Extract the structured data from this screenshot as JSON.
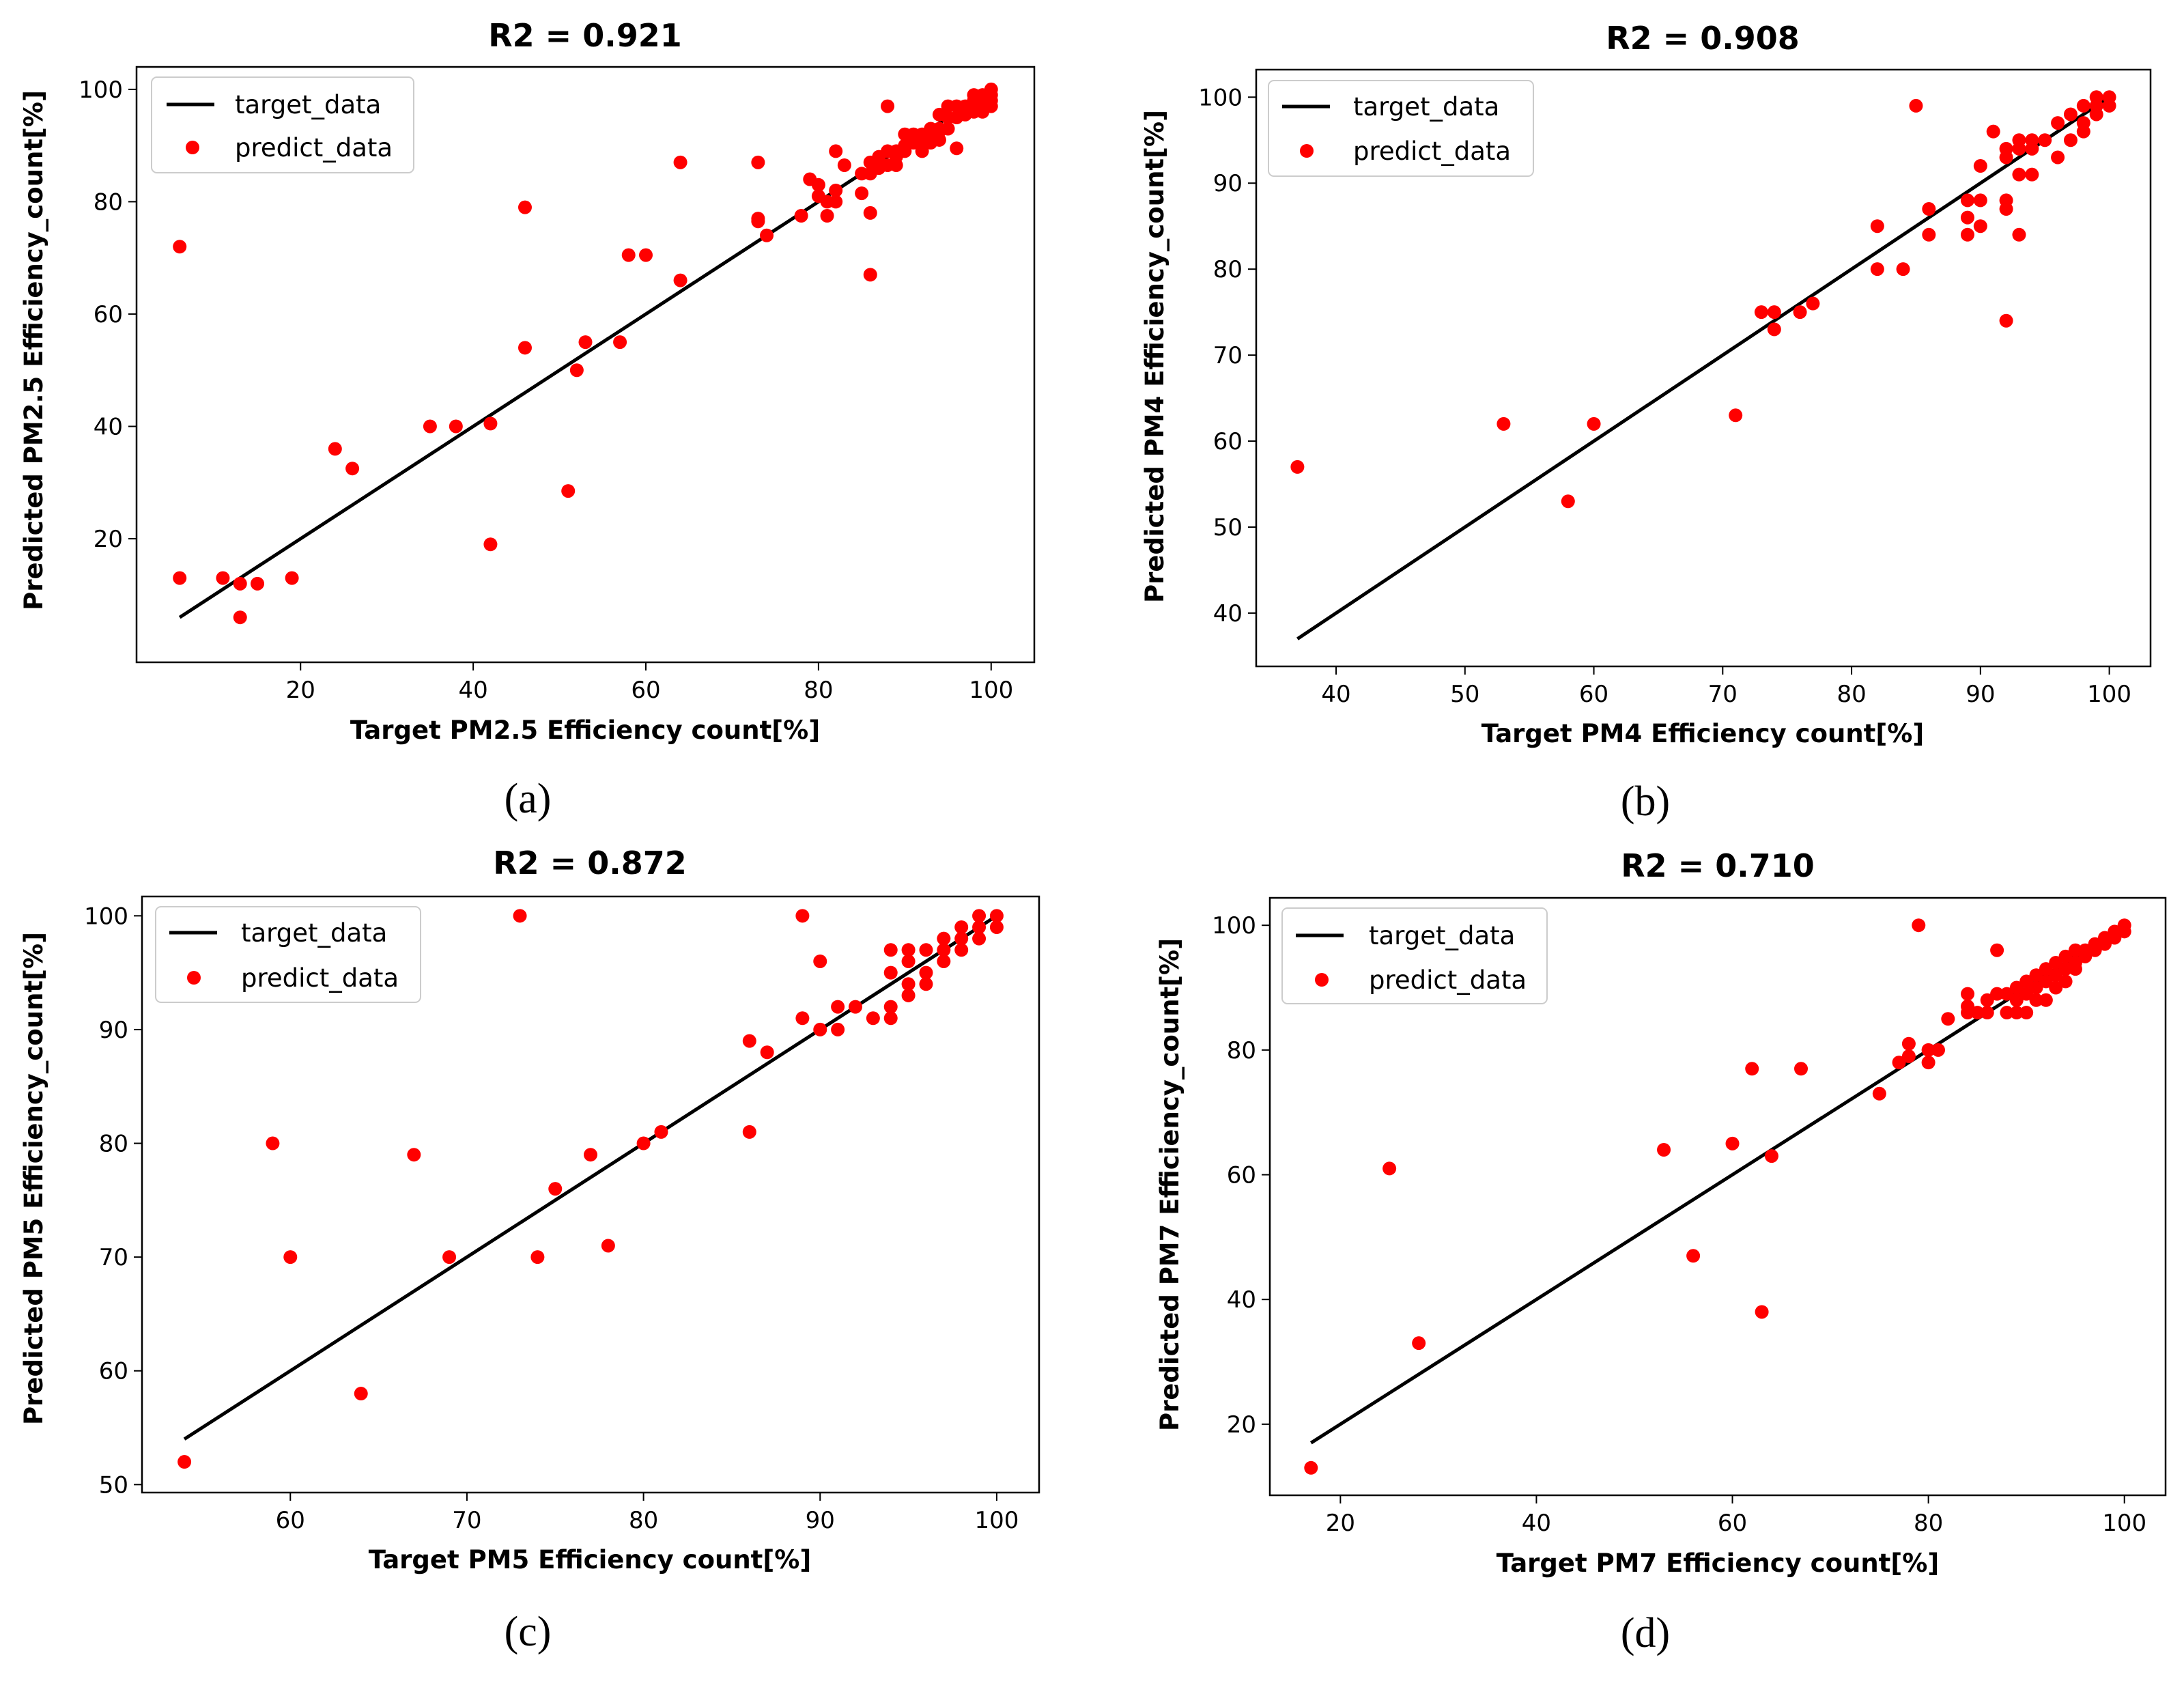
{
  "figure": {
    "captions": [
      "(a)",
      "(b)",
      "(c)",
      "(d)"
    ]
  },
  "colors": {
    "target_line": "#000000",
    "predict_points": "#ff0000",
    "axes": "#000000",
    "background": "#ffffff"
  },
  "chart_data": [
    {
      "type": "scatter",
      "panel": "a",
      "title": "R2 = 0.921",
      "xlabel": "Target PM2.5 Efficiency count[%]",
      "ylabel": "Predicted PM2.5 Efficiency_count[%]",
      "xlim": [
        1,
        105
      ],
      "ylim": [
        -2,
        104
      ],
      "xticks": [
        20,
        40,
        60,
        80,
        100
      ],
      "yticks": [
        20,
        40,
        60,
        80,
        100
      ],
      "legend": {
        "position": "upper-left",
        "entries": [
          "target_data",
          "predict_data"
        ]
      },
      "target_line": {
        "x": [
          6,
          100
        ],
        "y": [
          6,
          100
        ]
      },
      "points": [
        [
          6,
          72
        ],
        [
          6,
          13
        ],
        [
          11,
          13
        ],
        [
          13,
          12
        ],
        [
          13,
          6
        ],
        [
          15,
          12
        ],
        [
          19,
          13
        ],
        [
          24,
          36
        ],
        [
          26,
          32.5
        ],
        [
          35,
          40
        ],
        [
          38,
          40
        ],
        [
          42,
          40.5
        ],
        [
          42,
          19
        ],
        [
          46,
          79
        ],
        [
          46,
          54
        ],
        [
          51,
          28.5
        ],
        [
          52,
          50
        ],
        [
          53,
          55
        ],
        [
          57,
          55
        ],
        [
          58,
          70.5
        ],
        [
          60,
          70.5
        ],
        [
          64,
          87
        ],
        [
          64,
          66
        ],
        [
          73,
          87
        ],
        [
          73,
          77
        ],
        [
          73,
          76.5
        ],
        [
          74,
          74
        ],
        [
          78,
          77.5
        ],
        [
          79,
          84
        ],
        [
          80,
          83
        ],
        [
          80,
          81
        ],
        [
          81,
          77.5
        ],
        [
          81,
          80
        ],
        [
          82,
          89
        ],
        [
          82,
          82
        ],
        [
          82,
          80
        ],
        [
          83,
          86.5
        ],
        [
          85,
          81.5
        ],
        [
          85,
          85
        ],
        [
          86,
          87
        ],
        [
          86,
          78
        ],
        [
          86,
          67
        ],
        [
          86,
          85
        ],
        [
          87,
          86
        ],
        [
          87,
          88
        ],
        [
          88,
          97
        ],
        [
          88,
          89
        ],
        [
          88,
          86.5
        ],
        [
          89,
          89
        ],
        [
          89,
          88
        ],
        [
          89,
          86.5
        ],
        [
          90,
          92
        ],
        [
          90,
          89
        ],
        [
          90,
          90
        ],
        [
          91,
          92
        ],
        [
          91,
          90.5
        ],
        [
          92,
          90
        ],
        [
          92,
          92
        ],
        [
          92,
          89
        ],
        [
          93,
          92
        ],
        [
          93,
          93
        ],
        [
          93,
          90.5
        ],
        [
          94,
          95.5
        ],
        [
          94,
          93
        ],
        [
          94,
          91
        ],
        [
          94,
          92.5
        ],
        [
          95,
          97
        ],
        [
          95,
          95
        ],
        [
          95,
          93
        ],
        [
          96,
          97
        ],
        [
          96,
          89.5
        ],
        [
          96,
          95
        ],
        [
          97,
          97
        ],
        [
          97,
          95.5
        ],
        [
          97,
          96
        ],
        [
          98,
          99
        ],
        [
          98,
          96
        ],
        [
          98,
          97
        ],
        [
          98,
          98
        ],
        [
          99,
          99
        ],
        [
          99,
          96
        ],
        [
          99,
          97.5
        ],
        [
          99,
          98
        ],
        [
          100,
          100
        ],
        [
          100,
          99
        ],
        [
          100,
          98
        ],
        [
          100,
          97
        ]
      ]
    },
    {
      "type": "scatter",
      "panel": "b",
      "title": "R2 = 0.908",
      "xlabel": "Target PM4 Efficiency count[%]",
      "ylabel": "Predicted PM4 Efficiency_count[%]",
      "xlim": [
        33.8,
        103.2
      ],
      "ylim": [
        33.8,
        103.2
      ],
      "xticks": [
        40,
        50,
        60,
        70,
        80,
        90,
        100
      ],
      "yticks": [
        40,
        50,
        60,
        70,
        80,
        90,
        100
      ],
      "legend": {
        "position": "upper-left",
        "entries": [
          "target_data",
          "predict_data"
        ]
      },
      "target_line": {
        "x": [
          37,
          100
        ],
        "y": [
          37,
          100
        ]
      },
      "points": [
        [
          37,
          57
        ],
        [
          53,
          62
        ],
        [
          58,
          53
        ],
        [
          60,
          62
        ],
        [
          71,
          63
        ],
        [
          73,
          75
        ],
        [
          74,
          75
        ],
        [
          74,
          73
        ],
        [
          76,
          75
        ],
        [
          77,
          76
        ],
        [
          82,
          85
        ],
        [
          82,
          80
        ],
        [
          84,
          80
        ],
        [
          85,
          99
        ],
        [
          86,
          87
        ],
        [
          86,
          84
        ],
        [
          89,
          88
        ],
        [
          89,
          86
        ],
        [
          89,
          84
        ],
        [
          90,
          92
        ],
        [
          90,
          88
        ],
        [
          90,
          85
        ],
        [
          91,
          96
        ],
        [
          92,
          94
        ],
        [
          92,
          93
        ],
        [
          92,
          88
        ],
        [
          92,
          87
        ],
        [
          92,
          74
        ],
        [
          93,
          95
        ],
        [
          93,
          94
        ],
        [
          93,
          91
        ],
        [
          93,
          84
        ],
        [
          94,
          95
        ],
        [
          94,
          94
        ],
        [
          94,
          91
        ],
        [
          95,
          95
        ],
        [
          96,
          97
        ],
        [
          96,
          93
        ],
        [
          97,
          98
        ],
        [
          97,
          95
        ],
        [
          98,
          99
        ],
        [
          98,
          97
        ],
        [
          98,
          96
        ],
        [
          99,
          100
        ],
        [
          99,
          99
        ],
        [
          99,
          98
        ],
        [
          100,
          100
        ],
        [
          100,
          99
        ]
      ]
    },
    {
      "type": "scatter",
      "panel": "c",
      "title": "R2 = 0.872",
      "xlabel": "Target PM5 Efficiency count[%]",
      "ylabel": "Predicted PM5 Efficiency_count[%]",
      "xlim": [
        51.6,
        102.4
      ],
      "ylim": [
        49.3,
        101.7
      ],
      "xticks": [
        60,
        70,
        80,
        90,
        100
      ],
      "yticks": [
        50,
        60,
        70,
        80,
        90,
        100
      ],
      "legend": {
        "position": "upper-left",
        "entries": [
          "target_data",
          "predict_data"
        ]
      },
      "target_line": {
        "x": [
          54,
          100
        ],
        "y": [
          54,
          100
        ]
      },
      "points": [
        [
          54,
          52
        ],
        [
          59,
          80
        ],
        [
          60,
          70
        ],
        [
          64,
          58
        ],
        [
          67,
          79
        ],
        [
          69,
          70
        ],
        [
          73,
          100
        ],
        [
          74,
          70
        ],
        [
          75,
          76
        ],
        [
          77,
          79
        ],
        [
          78,
          71
        ],
        [
          80,
          80
        ],
        [
          81,
          81
        ],
        [
          86,
          89
        ],
        [
          86,
          81
        ],
        [
          87,
          88
        ],
        [
          89,
          100
        ],
        [
          89,
          91
        ],
        [
          90,
          96
        ],
        [
          90,
          90
        ],
        [
          91,
          92
        ],
        [
          91,
          90
        ],
        [
          92,
          92
        ],
        [
          93,
          91
        ],
        [
          94,
          97
        ],
        [
          94,
          95
        ],
        [
          94,
          92
        ],
        [
          94,
          91
        ],
        [
          95,
          97
        ],
        [
          95,
          96
        ],
        [
          95,
          94
        ],
        [
          95,
          93
        ],
        [
          96,
          97
        ],
        [
          96,
          95
        ],
        [
          96,
          94
        ],
        [
          97,
          98
        ],
        [
          97,
          97
        ],
        [
          97,
          96
        ],
        [
          98,
          99
        ],
        [
          98,
          98
        ],
        [
          98,
          97
        ],
        [
          99,
          100
        ],
        [
          99,
          99
        ],
        [
          99,
          98
        ],
        [
          100,
          100
        ],
        [
          100,
          99
        ]
      ]
    },
    {
      "type": "scatter",
      "panel": "d",
      "title": "R2 = 0.710",
      "xlabel": "Target PM7 Efficiency count[%]",
      "ylabel": "Predicted PM7 Efficiency_count[%]",
      "xlim": [
        12.8,
        104.2
      ],
      "ylim": [
        8.6,
        104.4
      ],
      "xticks": [
        20,
        40,
        60,
        80,
        100
      ],
      "yticks": [
        20,
        40,
        60,
        80,
        100
      ],
      "legend": {
        "position": "upper-left",
        "entries": [
          "target_data",
          "predict_data"
        ]
      },
      "target_line": {
        "x": [
          17,
          100
        ],
        "y": [
          17,
          100
        ]
      },
      "points": [
        [
          17,
          13
        ],
        [
          25,
          61
        ],
        [
          28,
          33
        ],
        [
          53,
          64
        ],
        [
          56,
          47
        ],
        [
          60,
          65
        ],
        [
          62,
          77
        ],
        [
          63,
          38
        ],
        [
          64,
          63
        ],
        [
          67,
          77
        ],
        [
          75,
          73
        ],
        [
          77,
          78
        ],
        [
          78,
          81
        ],
        [
          78,
          79
        ],
        [
          79,
          100
        ],
        [
          80,
          78
        ],
        [
          80,
          80
        ],
        [
          81,
          80
        ],
        [
          82,
          85
        ],
        [
          84,
          89
        ],
        [
          84,
          87
        ],
        [
          84,
          86
        ],
        [
          85,
          86
        ],
        [
          86,
          88
        ],
        [
          86,
          86
        ],
        [
          87,
          96
        ],
        [
          87,
          89
        ],
        [
          88,
          89
        ],
        [
          88,
          86
        ],
        [
          89,
          90
        ],
        [
          89,
          88
        ],
        [
          89,
          86
        ],
        [
          90,
          91
        ],
        [
          90,
          89
        ],
        [
          90,
          86
        ],
        [
          91,
          92
        ],
        [
          91,
          90
        ],
        [
          91,
          88
        ],
        [
          92,
          93
        ],
        [
          92,
          91
        ],
        [
          92,
          88
        ],
        [
          93,
          94
        ],
        [
          93,
          92
        ],
        [
          93,
          90
        ],
        [
          94,
          95
        ],
        [
          94,
          93
        ],
        [
          94,
          91
        ],
        [
          95,
          96
        ],
        [
          95,
          94
        ],
        [
          95,
          93
        ],
        [
          96,
          96
        ],
        [
          96,
          95
        ],
        [
          97,
          97
        ],
        [
          97,
          96
        ],
        [
          98,
          98
        ],
        [
          98,
          97
        ],
        [
          99,
          99
        ],
        [
          99,
          98
        ],
        [
          100,
          100
        ],
        [
          100,
          99
        ]
      ]
    }
  ]
}
